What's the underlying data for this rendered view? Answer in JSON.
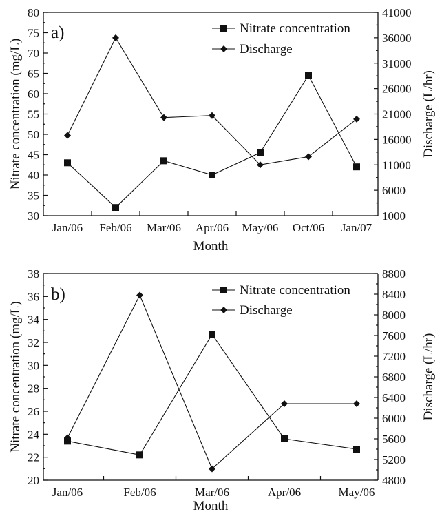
{
  "chart_data": [
    {
      "panel_label": "a)",
      "type": "line",
      "categories": [
        "Jan/06",
        "Feb/06",
        "Mar/06",
        "Apr/06",
        "May/06",
        "Oct/06",
        "Jan/07"
      ],
      "xlabel": "Month",
      "ylabel": "Nitrate concentration (mg/L)",
      "y2label": "Discharge (L/hr)",
      "ylim": [
        30,
        80
      ],
      "yticks": [
        30,
        35,
        40,
        45,
        50,
        55,
        60,
        65,
        70,
        75,
        80
      ],
      "y2lim": [
        1000,
        41000
      ],
      "y2ticks": [
        1000,
        6000,
        11000,
        16000,
        21000,
        26000,
        31000,
        36000,
        41000
      ],
      "legend_position": "top-right",
      "grid": false,
      "series": [
        {
          "name": "Nitrate concentration",
          "axis": "left",
          "marker": "square",
          "values": [
            43,
            32,
            43.5,
            40,
            45.5,
            64.5,
            42
          ]
        },
        {
          "name": "Discharge",
          "axis": "right",
          "marker": "diamond",
          "values": [
            16800,
            36000,
            20300,
            20700,
            11000,
            12600,
            20000
          ]
        }
      ]
    },
    {
      "panel_label": "b)",
      "type": "line",
      "categories": [
        "Jan/06",
        "Feb/06",
        "Mar/06",
        "Apr/06",
        "May/06"
      ],
      "xlabel": "Month",
      "ylabel": "Nitrate concentration (mg/L)",
      "y2label": "Discharge (L/hr)",
      "ylim": [
        20,
        38
      ],
      "yticks": [
        20,
        22,
        24,
        26,
        28,
        30,
        32,
        34,
        36,
        38
      ],
      "y2lim": [
        4800,
        8800
      ],
      "y2ticks": [
        4800,
        5200,
        5600,
        6000,
        6400,
        6800,
        7200,
        7600,
        8000,
        8400,
        8800
      ],
      "legend_position": "top-right",
      "grid": false,
      "series": [
        {
          "name": "Nitrate concentration",
          "axis": "left",
          "marker": "square",
          "values": [
            23.4,
            22.2,
            32.7,
            23.6,
            22.7
          ]
        },
        {
          "name": "Discharge",
          "axis": "right",
          "marker": "diamond",
          "values": [
            5620,
            8380,
            5020,
            6280,
            6280
          ]
        }
      ]
    }
  ]
}
